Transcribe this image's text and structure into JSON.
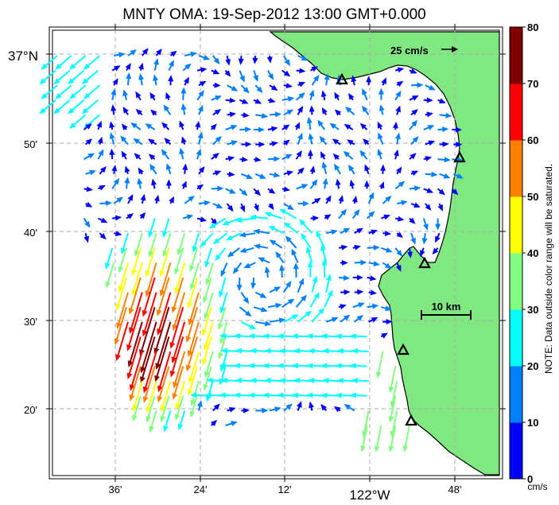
{
  "title": "MNTY OMA: 19-Sep-2012 13:00 GMT+0.000",
  "lat_labels": [
    "37°N",
    "50'",
    "40'",
    "30'",
    "20'"
  ],
  "lon_labels": [
    "36'",
    "24'",
    "12'",
    "122°W",
    "48'"
  ],
  "scale_arrow_label": "25 cm/s",
  "scale_bar_label": "10 km",
  "colorbar": {
    "ticks": [
      "80",
      "70",
      "60",
      "50",
      "40",
      "30",
      "20",
      "10",
      "0"
    ],
    "unit": "cm/s",
    "note": "NOTE: Data outside color range will be saturated.",
    "colors": [
      "#0000ff",
      "#0080ff",
      "#00ffff",
      "#80ff80",
      "#ffff00",
      "#ff8000",
      "#ff0000",
      "#800000"
    ]
  },
  "colors": {
    "land": "#80e880",
    "coast": "#000000",
    "grid": "#aaaaaa"
  }
}
